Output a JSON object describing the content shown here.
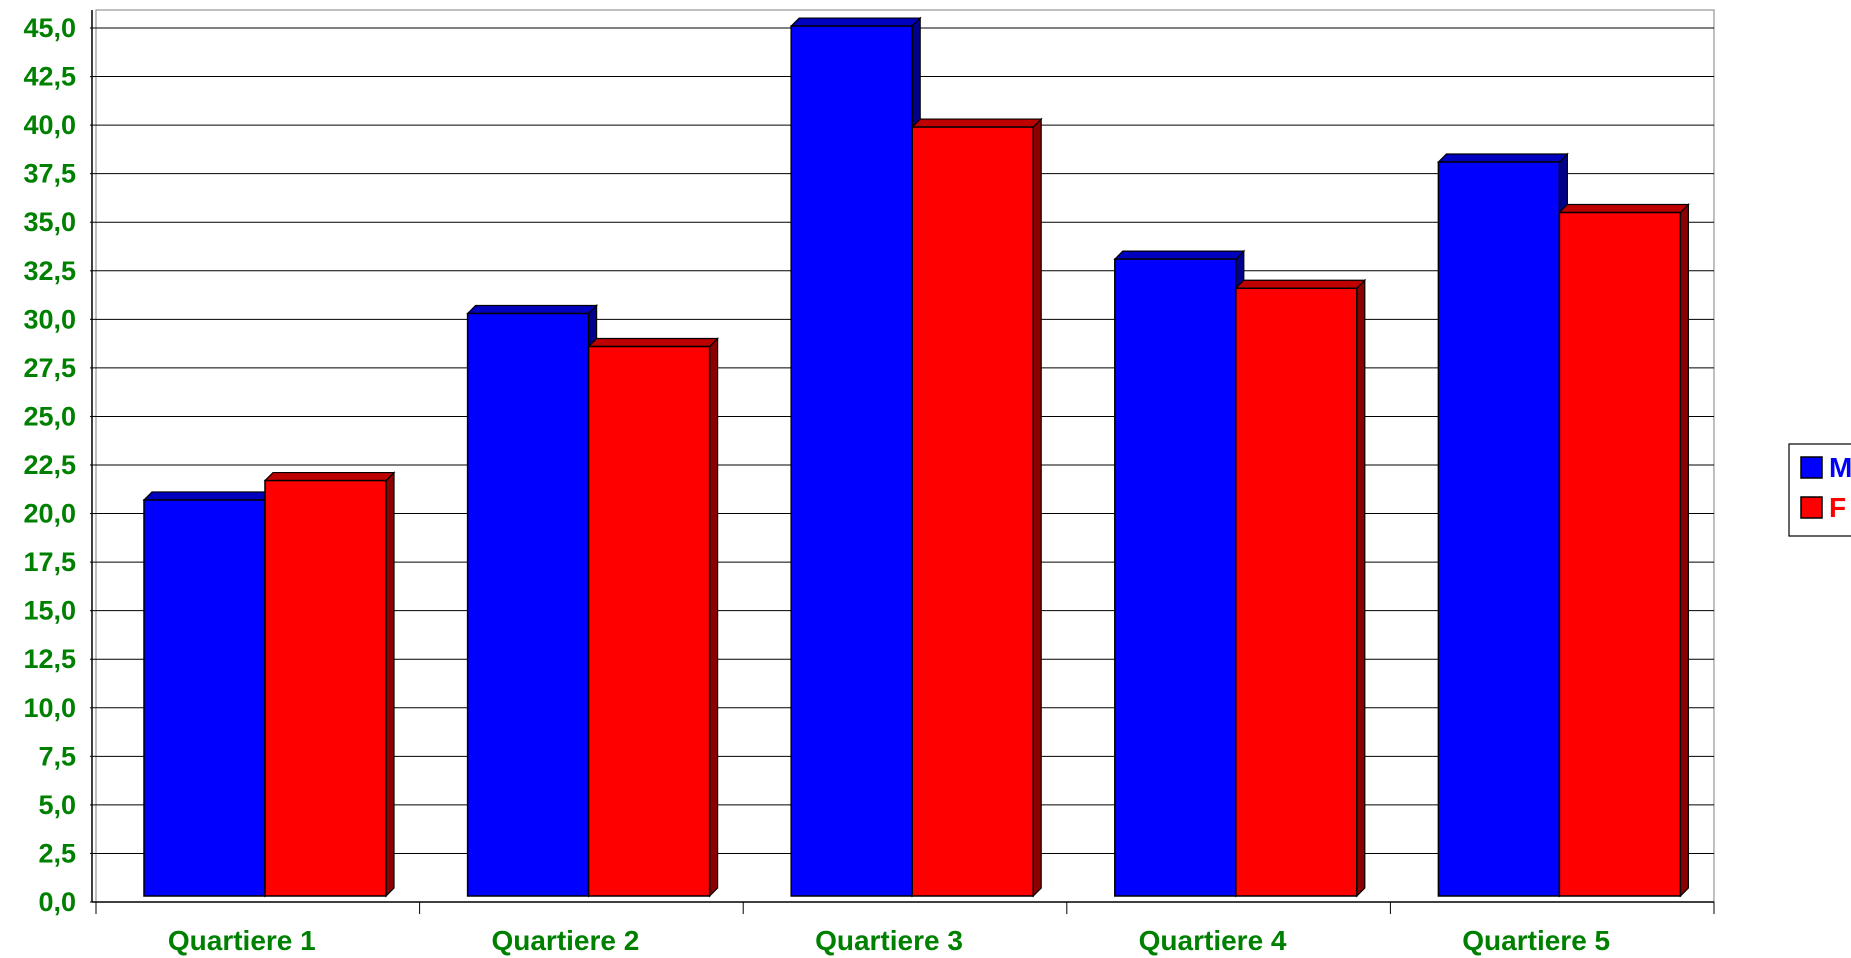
{
  "chart_data": {
    "type": "bar",
    "categories": [
      "Quartiere 1",
      "Quartiere 2",
      "Quartiere 3",
      "Quartiere 4",
      "Quartiere 5"
    ],
    "series": [
      {
        "name": "M",
        "values": [
          20.7,
          30.3,
          45.1,
          33.1,
          38.1
        ],
        "color": "#0000ff"
      },
      {
        "name": "F",
        "values": [
          21.7,
          28.6,
          39.9,
          31.6,
          35.5
        ],
        "color": "#ff0000"
      }
    ],
    "title": "",
    "xlabel": "",
    "ylabel": "",
    "ylim": [
      0,
      45
    ],
    "ytick_step": 2.5,
    "ytick_labels": [
      "0,0",
      "2,5",
      "5,0",
      "7,5",
      "10,0",
      "12,5",
      "15,0",
      "17,5",
      "20,0",
      "22,5",
      "25,0",
      "27,5",
      "30,0",
      "32,5",
      "35,0",
      "37,5",
      "40,0",
      "42,5",
      "45,0"
    ],
    "grid": true,
    "legend_placement": "right",
    "tick_label_color": "#008000",
    "legend": {
      "items": [
        {
          "label": "M",
          "color": "#0000ff",
          "text_color": "#0000ff"
        },
        {
          "label": "F",
          "color": "#ff0000",
          "text_color": "#ff0000"
        }
      ]
    }
  }
}
